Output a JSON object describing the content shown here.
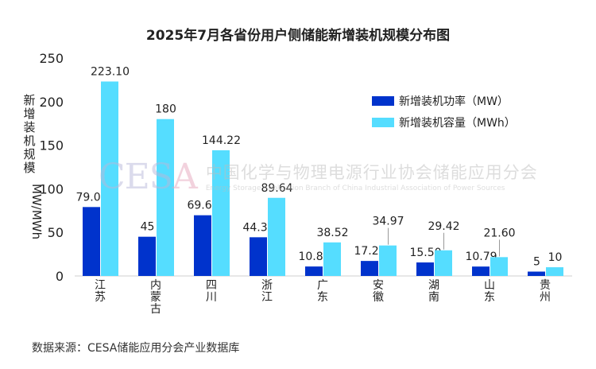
{
  "chart_data": {
    "type": "bar",
    "title": "2025年7月各省份用户侧储能新增装机规模分布图",
    "ylabel": "新增装机规模",
    "yunit": "MW/MWh",
    "ylim": [
      0,
      250
    ],
    "yticks": [
      0,
      50,
      100,
      150,
      200,
      250
    ],
    "grid": false,
    "legend_position": "top-right",
    "categories": [
      "江苏",
      "内蒙古",
      "四川",
      "浙江",
      "广东",
      "安徽",
      "湖南",
      "山东",
      "贵州"
    ],
    "series": [
      {
        "name": "新增装机功率（MW）",
        "color": "#0033cc",
        "values": [
          79.07,
          45,
          69.65,
          44.39,
          10.86,
          17.22,
          15.5,
          10.79,
          5
        ],
        "labels": [
          "79.07",
          "45",
          "69.65",
          "44.39",
          "10.86",
          "17.22",
          "15.50",
          "10.79",
          "5"
        ]
      },
      {
        "name": "新增装机容量（MWh）",
        "color": "#55ddff",
        "values": [
          223.1,
          180,
          144.22,
          89.64,
          38.52,
          34.97,
          29.42,
          21.6,
          10
        ],
        "labels": [
          "223.10",
          "180",
          "144.22",
          "89.64",
          "38.52",
          "34.97",
          "29.42",
          "21.60",
          "10"
        ]
      }
    ]
  },
  "watermark": {
    "logo": "CESA",
    "name_cn": "中国化学与物理电源行业协会储能应用分会",
    "name_en": "Energy Storage Application Branch of China Industrial Association of Power Sources"
  },
  "source_note": "数据来源：CESA储能应用分会产业数据库"
}
